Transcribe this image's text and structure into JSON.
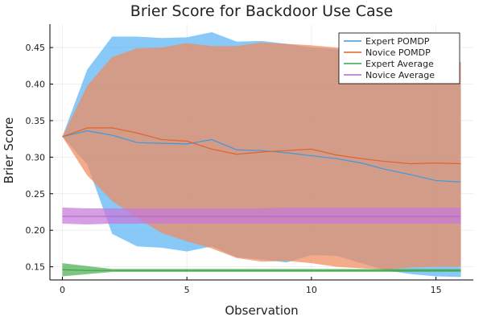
{
  "chart_data": {
    "type": "line",
    "title": "Brier Score for Backdoor Use Case",
    "xlabel": "Observation",
    "ylabel": "Brier Score",
    "xlim": [
      -0.5,
      16.5
    ],
    "ylim": [
      0.132,
      0.482
    ],
    "xticks": [
      0,
      5,
      10,
      15
    ],
    "yticks": [
      0.15,
      0.2,
      0.25,
      0.3,
      0.35,
      0.4,
      0.45
    ],
    "ytick_labels": [
      "0.15",
      "0.20",
      "0.25",
      "0.30",
      "0.35",
      "0.40",
      "0.45"
    ],
    "grid": true,
    "legend_position": "top-right",
    "x": [
      0,
      1,
      2,
      3,
      4,
      5,
      6,
      7,
      8,
      9,
      10,
      11,
      12,
      13,
      14,
      15,
      16
    ],
    "series": [
      {
        "name": "Expert POMDP",
        "color": "#3b9ae1",
        "band_color": "#5ab4f5",
        "values": [
          0.328,
          0.336,
          0.33,
          0.32,
          0.319,
          0.318,
          0.324,
          0.31,
          0.309,
          0.306,
          0.302,
          0.298,
          0.292,
          0.283,
          0.276,
          0.268,
          0.266
        ],
        "upper": [
          0.328,
          0.42,
          0.465,
          0.465,
          0.463,
          0.464,
          0.471,
          0.458,
          0.459,
          0.455,
          0.45,
          0.448,
          0.44,
          0.43,
          0.42,
          0.41,
          0.4
        ],
        "lower": [
          0.328,
          0.29,
          0.195,
          0.178,
          0.176,
          0.171,
          0.178,
          0.163,
          0.16,
          0.156,
          0.166,
          0.165,
          0.155,
          0.145,
          0.14,
          0.137,
          0.136
        ]
      },
      {
        "name": "Novice POMDP",
        "color": "#e2622d",
        "band_color": "#f08a5d",
        "values": [
          0.328,
          0.34,
          0.34,
          0.333,
          0.324,
          0.322,
          0.311,
          0.304,
          0.307,
          0.309,
          0.311,
          0.303,
          0.298,
          0.294,
          0.291,
          0.292,
          0.291
        ],
        "upper": [
          0.328,
          0.398,
          0.437,
          0.449,
          0.45,
          0.456,
          0.452,
          0.452,
          0.457,
          0.455,
          0.453,
          0.45,
          0.445,
          0.44,
          0.435,
          0.432,
          0.43
        ],
        "lower": [
          0.328,
          0.275,
          0.24,
          0.217,
          0.196,
          0.185,
          0.175,
          0.162,
          0.157,
          0.158,
          0.155,
          0.15,
          0.148,
          0.146,
          0.149,
          0.15,
          0.15
        ]
      },
      {
        "name": "Expert Average",
        "color": "#3aa34a",
        "band_color": "#4caf50",
        "values": [
          0.146,
          0.145,
          0.145,
          0.145,
          0.145,
          0.145,
          0.145,
          0.145,
          0.145,
          0.145,
          0.145,
          0.145,
          0.145,
          0.145,
          0.145,
          0.145,
          0.145
        ],
        "upper": [
          0.155,
          0.151,
          0.147,
          0.147,
          0.147,
          0.147,
          0.147,
          0.147,
          0.147,
          0.147,
          0.147,
          0.147,
          0.147,
          0.147,
          0.147,
          0.147,
          0.147
        ],
        "lower": [
          0.137,
          0.14,
          0.143,
          0.143,
          0.143,
          0.143,
          0.143,
          0.143,
          0.143,
          0.143,
          0.143,
          0.143,
          0.143,
          0.143,
          0.143,
          0.143,
          0.143
        ]
      },
      {
        "name": "Novice Average",
        "color": "#b368c9",
        "band_color": "#c678d8",
        "values": [
          0.219,
          0.219,
          0.219,
          0.219,
          0.219,
          0.219,
          0.219,
          0.219,
          0.219,
          0.219,
          0.219,
          0.219,
          0.219,
          0.219,
          0.219,
          0.219,
          0.219
        ],
        "upper": [
          0.231,
          0.23,
          0.23,
          0.23,
          0.23,
          0.23,
          0.23,
          0.23,
          0.23,
          0.231,
          0.231,
          0.231,
          0.231,
          0.231,
          0.231,
          0.231,
          0.231
        ],
        "lower": [
          0.209,
          0.208,
          0.209,
          0.209,
          0.209,
          0.209,
          0.209,
          0.209,
          0.209,
          0.209,
          0.209,
          0.209,
          0.209,
          0.209,
          0.209,
          0.209,
          0.209
        ]
      }
    ]
  }
}
